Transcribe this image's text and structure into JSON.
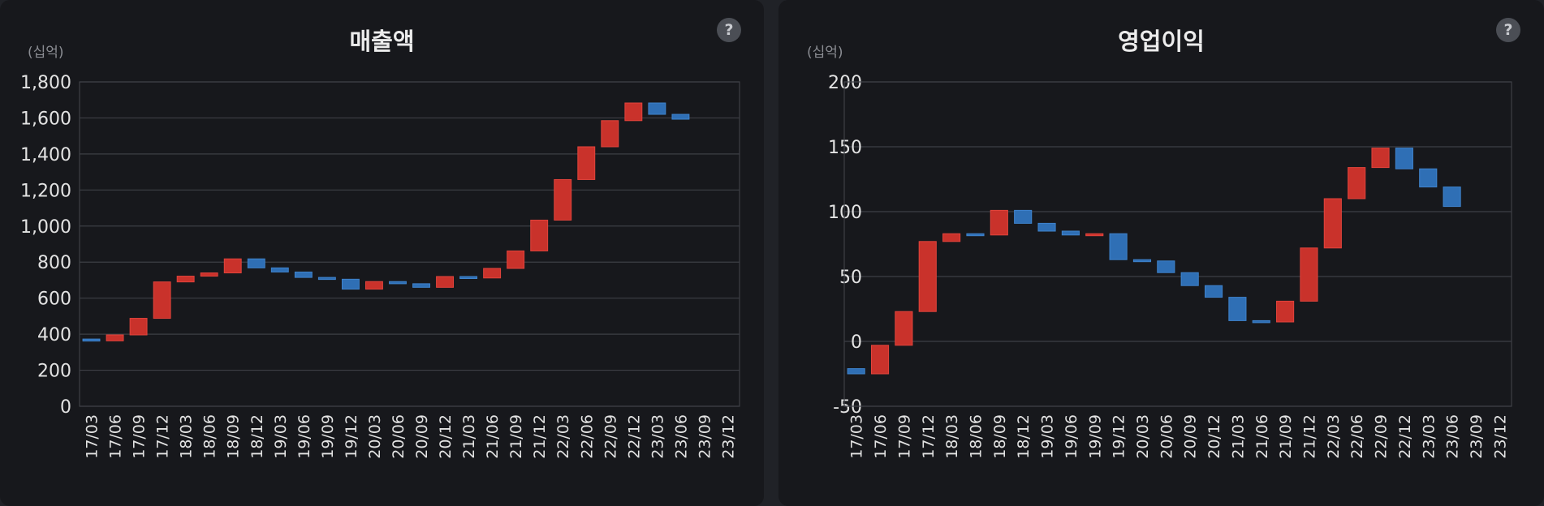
{
  "charts": [
    {
      "title": "매출액",
      "unit": "(십억)",
      "help": "?"
    },
    {
      "title": "영업이익",
      "unit": "(십억)",
      "help": "?"
    }
  ],
  "colors": {
    "up": "#c9322b",
    "down": "#2f6fb5",
    "grid": "#3d3f45",
    "axis_text": "#e3e3e3"
  },
  "chart_data": [
    {
      "type": "waterfall",
      "title": "매출액",
      "ylabel": "(십억)",
      "ylim": [
        0,
        1800
      ],
      "yticks": [
        0,
        200,
        400,
        600,
        800,
        1000,
        1200,
        1400,
        1600,
        1800
      ],
      "ytick_labels": [
        "0",
        "200",
        "400",
        "600",
        "800",
        "1,000",
        "1,200",
        "1,400",
        "1,600",
        "1,800"
      ],
      "categories": [
        "17/03",
        "17/06",
        "17/09",
        "17/12",
        "18/03",
        "18/06",
        "18/09",
        "18/12",
        "19/03",
        "19/06",
        "19/09",
        "19/12",
        "20/03",
        "20/06",
        "20/09",
        "20/12",
        "21/03",
        "21/06",
        "21/09",
        "21/12",
        "22/03",
        "22/06",
        "22/09",
        "22/12",
        "23/03",
        "23/06",
        "23/09",
        "23/12"
      ],
      "bars": [
        {
          "from": 373,
          "to": 363
        },
        {
          "from": 363,
          "to": 396
        },
        {
          "from": 396,
          "to": 488
        },
        {
          "from": 488,
          "to": 690
        },
        {
          "from": 690,
          "to": 722
        },
        {
          "from": 722,
          "to": 740
        },
        {
          "from": 740,
          "to": 818
        },
        {
          "from": 818,
          "to": 768
        },
        {
          "from": 768,
          "to": 745
        },
        {
          "from": 745,
          "to": 715
        },
        {
          "from": 715,
          "to": 705
        },
        {
          "from": 705,
          "to": 650
        },
        {
          "from": 650,
          "to": 692
        },
        {
          "from": 692,
          "to": 680
        },
        {
          "from": 680,
          "to": 660
        },
        {
          "from": 660,
          "to": 720
        },
        {
          "from": 720,
          "to": 712
        },
        {
          "from": 712,
          "to": 765
        },
        {
          "from": 765,
          "to": 862
        },
        {
          "from": 862,
          "to": 1033
        },
        {
          "from": 1033,
          "to": 1258
        },
        {
          "from": 1258,
          "to": 1440
        },
        {
          "from": 1440,
          "to": 1585
        },
        {
          "from": 1585,
          "to": 1683
        },
        {
          "from": 1683,
          "to": 1620
        },
        {
          "from": 1620,
          "to": 1593
        },
        null,
        null
      ]
    },
    {
      "type": "waterfall",
      "title": "영업이익",
      "ylabel": "(십억)",
      "ylim": [
        -50,
        200
      ],
      "yticks": [
        -50,
        0,
        50,
        100,
        150,
        200
      ],
      "ytick_labels": [
        "-50",
        "0",
        "50",
        "100",
        "150",
        "200"
      ],
      "categories": [
        "17/03",
        "17/06",
        "17/09",
        "17/12",
        "18/03",
        "18/06",
        "18/09",
        "18/12",
        "19/03",
        "19/06",
        "19/09",
        "19/12",
        "20/03",
        "20/06",
        "20/09",
        "20/12",
        "21/03",
        "21/06",
        "21/09",
        "21/12",
        "22/03",
        "22/06",
        "22/09",
        "22/12",
        "23/03",
        "23/06",
        "23/09",
        "23/12"
      ],
      "bars": [
        {
          "from": -21,
          "to": -25
        },
        {
          "from": -25,
          "to": -3
        },
        {
          "from": -3,
          "to": 23
        },
        {
          "from": 23,
          "to": 77
        },
        {
          "from": 77,
          "to": 83
        },
        {
          "from": 83,
          "to": 82
        },
        {
          "from": 82,
          "to": 101
        },
        {
          "from": 101,
          "to": 91
        },
        {
          "from": 91,
          "to": 85
        },
        {
          "from": 85,
          "to": 82
        },
        {
          "from": 82,
          "to": 83
        },
        {
          "from": 83,
          "to": 63
        },
        {
          "from": 63,
          "to": 62
        },
        {
          "from": 62,
          "to": 53
        },
        {
          "from": 53,
          "to": 43
        },
        {
          "from": 43,
          "to": 34
        },
        {
          "from": 34,
          "to": 16
        },
        {
          "from": 16,
          "to": 15
        },
        {
          "from": 15,
          "to": 31
        },
        {
          "from": 31,
          "to": 72
        },
        {
          "from": 72,
          "to": 110
        },
        {
          "from": 110,
          "to": 134
        },
        {
          "from": 134,
          "to": 149
        },
        {
          "from": 149,
          "to": 133
        },
        {
          "from": 133,
          "to": 119
        },
        {
          "from": 119,
          "to": 104
        },
        null,
        null
      ]
    }
  ]
}
